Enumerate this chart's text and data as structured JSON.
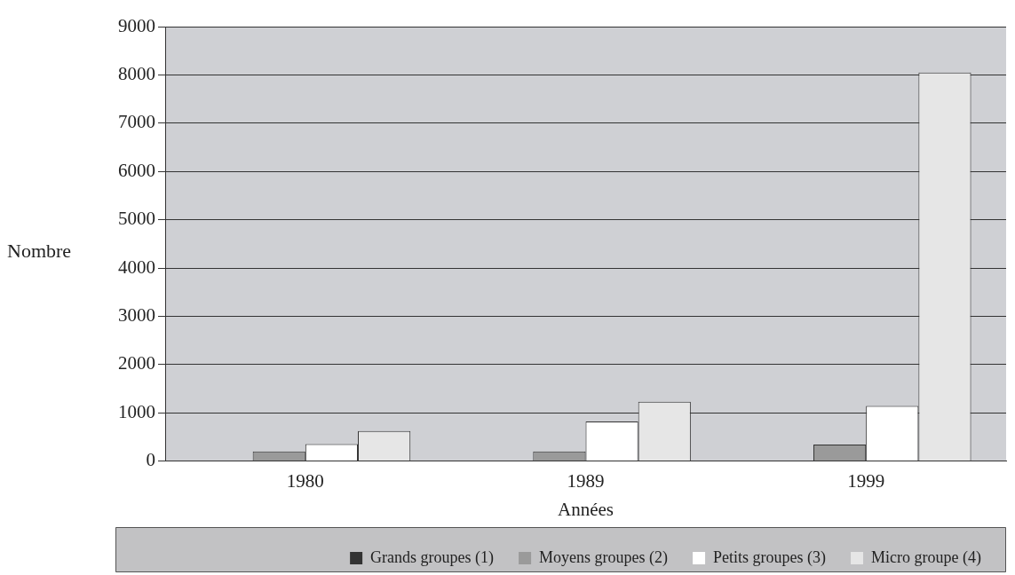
{
  "chart_data": {
    "type": "bar",
    "xlabel": "Années",
    "ylabel": "Nombre",
    "categories": [
      "1980",
      "1989",
      "1999"
    ],
    "series": [
      {
        "name": "Grands groupes (1)",
        "color": "#333333",
        "values": [
          null,
          null,
          null
        ]
      },
      {
        "name": "Moyens groupes (2)",
        "color": "#9a9a9a",
        "values": [
          200,
          200,
          340
        ]
      },
      {
        "name": "Petits groupes (3)",
        "color": "#ffffff",
        "values": [
          350,
          820,
          1140
        ]
      },
      {
        "name": "Micro groupe (4)",
        "color": "#e6e6e6",
        "values": [
          620,
          1230,
          8050
        ]
      }
    ],
    "ylim": [
      0,
      9000
    ],
    "yticks": [
      0,
      1000,
      2000,
      3000,
      4000,
      5000,
      6000,
      7000,
      8000,
      9000
    ],
    "grid": "y",
    "legend": "bottom"
  }
}
